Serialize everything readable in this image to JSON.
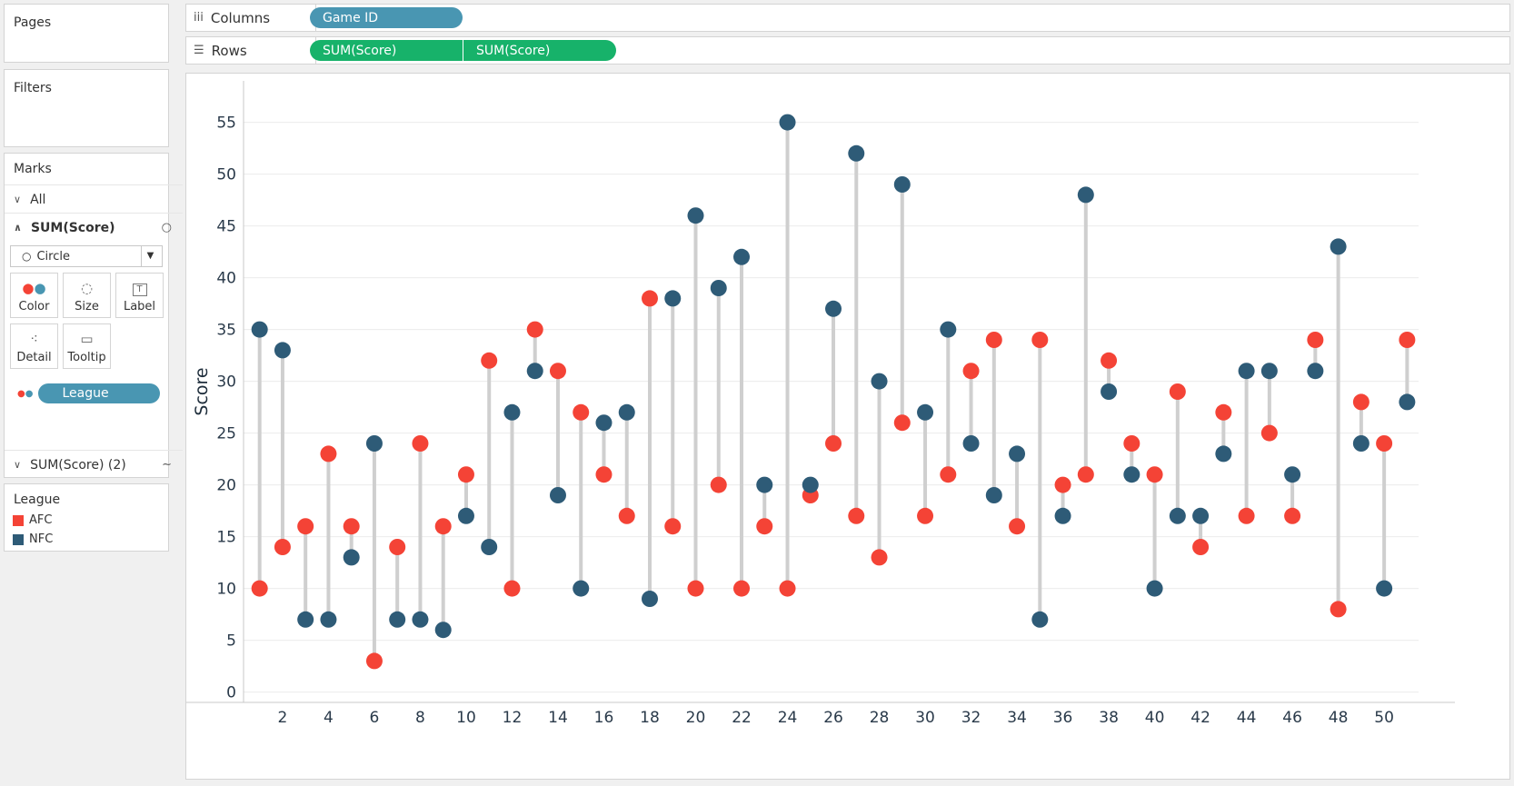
{
  "sidebar": {
    "pages_title": "Pages",
    "filters_title": "Filters",
    "marks_title": "Marks",
    "all_label": "All",
    "measure_label": "SUM(Score)",
    "mark_type": "Circle",
    "buttons": {
      "color": "Color",
      "size": "Size",
      "label": "Label",
      "detail": "Detail",
      "tooltip": "Tooltip"
    },
    "color_pill": "League",
    "measure2_label": "SUM(Score) (2)",
    "legend_title": "League",
    "legend_items": [
      {
        "label": "AFC",
        "color": "#f44336"
      },
      {
        "label": "NFC",
        "color": "#2e5b77"
      }
    ]
  },
  "shelves": {
    "columns_label": "Columns",
    "columns_pill": "Game ID",
    "rows_label": "Rows",
    "rows_pills": [
      "SUM(Score)",
      "SUM(Score)"
    ]
  },
  "colors": {
    "afc": "#f44336",
    "nfc": "#2e5b77",
    "connector": "#cfcfcf",
    "pill_blue": "#4996b2",
    "pill_green": "#17b26a"
  },
  "chart_data": {
    "type": "scatter",
    "title": "",
    "xlabel": "",
    "ylabel": "Score",
    "xlim": [
      0.3,
      51.5
    ],
    "ylim": [
      -1,
      59
    ],
    "yticks": [
      0,
      5,
      10,
      15,
      20,
      25,
      30,
      35,
      40,
      45,
      50,
      55
    ],
    "xticks": [
      2,
      4,
      6,
      8,
      10,
      12,
      14,
      16,
      18,
      20,
      22,
      24,
      26,
      28,
      30,
      32,
      34,
      36,
      38,
      40,
      42,
      44,
      46,
      48,
      50
    ],
    "x": [
      1,
      2,
      3,
      4,
      5,
      6,
      7,
      8,
      9,
      10,
      11,
      12,
      13,
      14,
      15,
      16,
      17,
      18,
      19,
      20,
      21,
      22,
      23,
      24,
      25,
      26,
      27,
      28,
      29,
      30,
      31,
      32,
      33,
      34,
      35,
      36,
      37,
      38,
      39,
      40,
      41,
      42,
      43,
      44,
      45,
      46,
      47,
      48,
      49,
      50,
      51
    ],
    "series": [
      {
        "name": "AFC",
        "color": "#f44336",
        "values": [
          10,
          14,
          16,
          23,
          16,
          3,
          14,
          24,
          16,
          21,
          32,
          10,
          35,
          31,
          27,
          21,
          17,
          38,
          16,
          10,
          20,
          10,
          16,
          10,
          19,
          24,
          17,
          13,
          26,
          17,
          21,
          31,
          34,
          16,
          34,
          20,
          21,
          32,
          24,
          21,
          29,
          14,
          27,
          17,
          25,
          17,
          34,
          8,
          28,
          24,
          34
        ]
      },
      {
        "name": "NFC",
        "color": "#2e5b77",
        "values": [
          35,
          33,
          7,
          7,
          13,
          24,
          7,
          7,
          6,
          17,
          14,
          27,
          31,
          19,
          10,
          26,
          27,
          9,
          38,
          46,
          39,
          42,
          20,
          55,
          20,
          37,
          52,
          30,
          49,
          27,
          35,
          24,
          19,
          23,
          7,
          17,
          48,
          29,
          21,
          10,
          17,
          17,
          23,
          31,
          31,
          21,
          31,
          43,
          24,
          10,
          28
        ]
      }
    ],
    "grid": true,
    "legend": "sidebar"
  }
}
